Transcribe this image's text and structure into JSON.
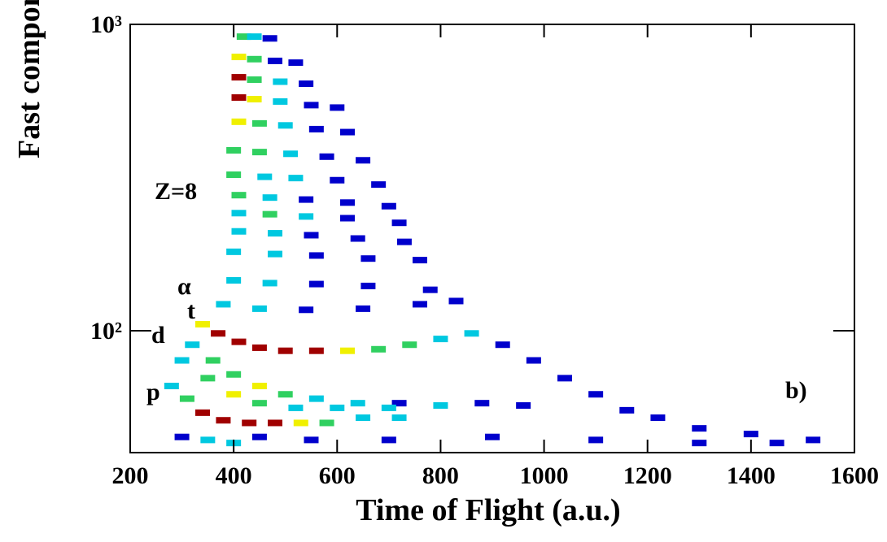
{
  "chart_data": {
    "type": "heatmap",
    "x_label": "Time of Flight (a.u.)",
    "y_label": "Fast component (a.u.)",
    "xlim": [
      200,
      1600
    ],
    "ylim": [
      40,
      1000
    ],
    "log_y": true,
    "xticks": [
      200,
      400,
      600,
      800,
      1000,
      1200,
      1400,
      1600
    ],
    "yticks": [
      {
        "value": 100,
        "label": "10²"
      },
      {
        "value": 1000,
        "label": "10³"
      }
    ],
    "colors": [
      "#0000cc",
      "#00c8e0",
      "#30d060",
      "#f0f000",
      "#a00000"
    ],
    "annotations": [
      "Z=8",
      "α",
      "t",
      "d",
      "p",
      "b)"
    ],
    "cells": [
      [
        420,
        912,
        3
      ],
      [
        440,
        912,
        2
      ],
      [
        470,
        900,
        1
      ],
      [
        410,
        783,
        4
      ],
      [
        440,
        770,
        3
      ],
      [
        480,
        760,
        1
      ],
      [
        520,
        750,
        1
      ],
      [
        410,
        672,
        5
      ],
      [
        440,
        660,
        3
      ],
      [
        490,
        650,
        2
      ],
      [
        540,
        640,
        1
      ],
      [
        410,
        577,
        5
      ],
      [
        440,
        570,
        4
      ],
      [
        490,
        560,
        2
      ],
      [
        550,
        545,
        1
      ],
      [
        600,
        535,
        1
      ],
      [
        410,
        481,
        4
      ],
      [
        450,
        475,
        3
      ],
      [
        500,
        468,
        2
      ],
      [
        560,
        455,
        1
      ],
      [
        620,
        445,
        1
      ],
      [
        400,
        388,
        3
      ],
      [
        450,
        383,
        3
      ],
      [
        510,
        378,
        2
      ],
      [
        580,
        370,
        1
      ],
      [
        650,
        360,
        1
      ],
      [
        400,
        323,
        3
      ],
      [
        460,
        318,
        2
      ],
      [
        520,
        315,
        2
      ],
      [
        600,
        310,
        1
      ],
      [
        680,
        300,
        1
      ],
      [
        410,
        277,
        3
      ],
      [
        470,
        272,
        2
      ],
      [
        540,
        268,
        1
      ],
      [
        620,
        262,
        1
      ],
      [
        700,
        255,
        1
      ],
      [
        410,
        242,
        2
      ],
      [
        470,
        240,
        3
      ],
      [
        540,
        236,
        2
      ],
      [
        620,
        233,
        1
      ],
      [
        720,
        225,
        1
      ],
      [
        410,
        211,
        2
      ],
      [
        480,
        208,
        2
      ],
      [
        550,
        205,
        1
      ],
      [
        640,
        200,
        1
      ],
      [
        730,
        195,
        1
      ],
      [
        400,
        181,
        2
      ],
      [
        480,
        178,
        2
      ],
      [
        560,
        176,
        1
      ],
      [
        660,
        172,
        1
      ],
      [
        760,
        170,
        1
      ],
      [
        400,
        146,
        2
      ],
      [
        470,
        143,
        2
      ],
      [
        560,
        142,
        1
      ],
      [
        660,
        140,
        1
      ],
      [
        780,
        136,
        1
      ],
      [
        380,
        122,
        2
      ],
      [
        450,
        118,
        2
      ],
      [
        540,
        117,
        1
      ],
      [
        650,
        118,
        1
      ],
      [
        760,
        122,
        1
      ],
      [
        830,
        125,
        1
      ],
      [
        340,
        105,
        4
      ],
      [
        370,
        98,
        5
      ],
      [
        410,
        92,
        5
      ],
      [
        450,
        88,
        5
      ],
      [
        500,
        86,
        5
      ],
      [
        560,
        86,
        5
      ],
      [
        620,
        86,
        4
      ],
      [
        680,
        87,
        3
      ],
      [
        740,
        90,
        3
      ],
      [
        800,
        94,
        2
      ],
      [
        860,
        98,
        2
      ],
      [
        920,
        90,
        1
      ],
      [
        980,
        80,
        1
      ],
      [
        1040,
        70,
        1
      ],
      [
        1100,
        62,
        1
      ],
      [
        1160,
        55,
        1
      ],
      [
        1220,
        52,
        1
      ],
      [
        1300,
        48,
        1
      ],
      [
        1400,
        46,
        1
      ],
      [
        1520,
        44,
        1
      ],
      [
        320,
        90,
        2
      ],
      [
        360,
        80,
        3
      ],
      [
        400,
        72,
        3
      ],
      [
        450,
        66,
        4
      ],
      [
        500,
        62,
        3
      ],
      [
        560,
        60,
        2
      ],
      [
        640,
        58,
        2
      ],
      [
        720,
        58,
        1
      ],
      [
        300,
        80,
        2
      ],
      [
        350,
        70,
        3
      ],
      [
        400,
        62,
        4
      ],
      [
        450,
        58,
        3
      ],
      [
        520,
        56,
        2
      ],
      [
        600,
        56,
        2
      ],
      [
        700,
        56,
        2
      ],
      [
        800,
        57,
        2
      ],
      [
        880,
        58,
        1
      ],
      [
        960,
        57,
        1
      ],
      [
        280,
        66,
        2
      ],
      [
        310,
        60,
        3
      ],
      [
        340,
        54,
        5
      ],
      [
        380,
        51,
        5
      ],
      [
        430,
        50,
        5
      ],
      [
        480,
        50,
        5
      ],
      [
        530,
        50,
        4
      ],
      [
        580,
        50,
        3
      ],
      [
        650,
        52,
        2
      ],
      [
        720,
        52,
        2
      ],
      [
        300,
        45,
        1
      ],
      [
        350,
        44,
        2
      ],
      [
        400,
        43,
        2
      ],
      [
        450,
        45,
        1
      ],
      [
        550,
        44,
        1
      ],
      [
        700,
        44,
        1
      ],
      [
        900,
        45,
        1
      ],
      [
        1100,
        44,
        1
      ],
      [
        1300,
        43,
        1
      ],
      [
        1450,
        43,
        1
      ]
    ]
  }
}
